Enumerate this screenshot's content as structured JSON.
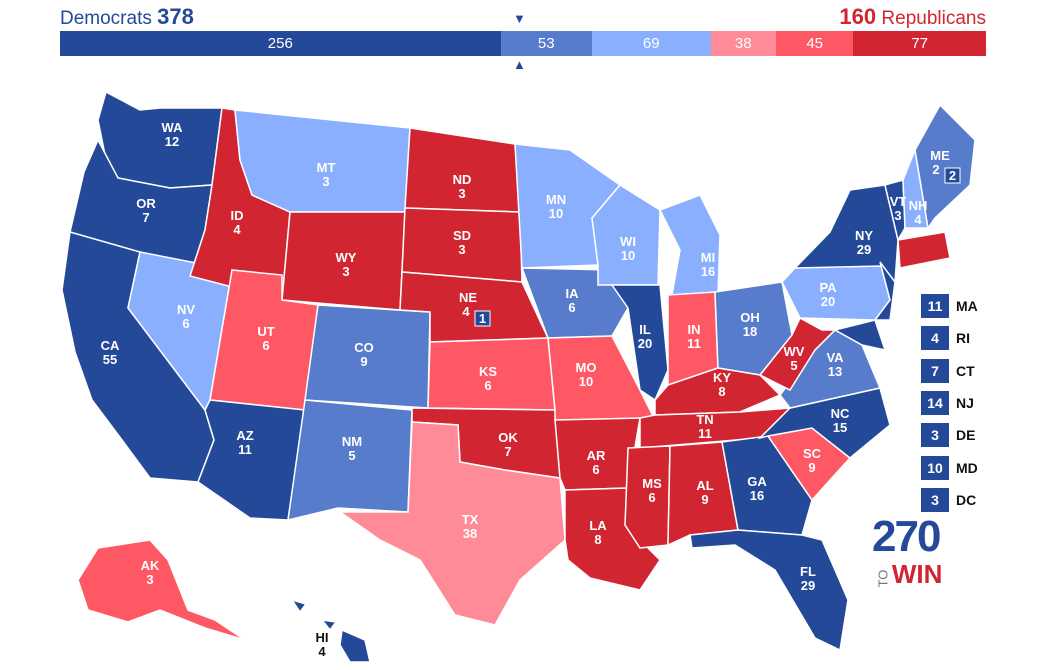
{
  "header": {
    "dem_label": "Democrats",
    "dem_total": "378",
    "rep_total": "160",
    "rep_label": "Republicans"
  },
  "colors": {
    "safe_d": "#244999",
    "likely_d": "#577ccc",
    "lean_d": "#8aafff",
    "lean_r": "#ff8b98",
    "likely_r": "#ff5865",
    "safe_r": "#d22532"
  },
  "bar": [
    {
      "value": 256,
      "label": "256",
      "color": "#244999"
    },
    {
      "value": 53,
      "label": "53",
      "color": "#577ccc"
    },
    {
      "value": 69,
      "label": "69",
      "color": "#8aafff"
    },
    {
      "value": 38,
      "label": "38",
      "color": "#ff8b98"
    },
    {
      "value": 45,
      "label": "45",
      "color": "#ff5865"
    },
    {
      "value": 77,
      "label": "77",
      "color": "#d22532"
    }
  ],
  "states": {
    "WA": {
      "label": "WA",
      "ev": "12",
      "rating": "safe_d"
    },
    "OR": {
      "label": "OR",
      "ev": "7",
      "rating": "safe_d"
    },
    "CA": {
      "label": "CA",
      "ev": "55",
      "rating": "safe_d"
    },
    "NV": {
      "label": "NV",
      "ev": "6",
      "rating": "lean_d"
    },
    "ID": {
      "label": "ID",
      "ev": "4",
      "rating": "safe_r"
    },
    "MT": {
      "label": "MT",
      "ev": "3",
      "rating": "lean_d"
    },
    "WY": {
      "label": "WY",
      "ev": "3",
      "rating": "safe_r"
    },
    "UT": {
      "label": "UT",
      "ev": "6",
      "rating": "likely_r"
    },
    "AZ": {
      "label": "AZ",
      "ev": "11",
      "rating": "safe_d"
    },
    "CO": {
      "label": "CO",
      "ev": "9",
      "rating": "likely_d"
    },
    "NM": {
      "label": "NM",
      "ev": "5",
      "rating": "likely_d"
    },
    "ND": {
      "label": "ND",
      "ev": "3",
      "rating": "safe_r"
    },
    "SD": {
      "label": "SD",
      "ev": "3",
      "rating": "safe_r"
    },
    "NE": {
      "label": "NE",
      "ev": "4",
      "rating": "safe_r"
    },
    "KS": {
      "label": "KS",
      "ev": "6",
      "rating": "likely_r"
    },
    "OK": {
      "label": "OK",
      "ev": "7",
      "rating": "safe_r"
    },
    "TX": {
      "label": "TX",
      "ev": "38",
      "rating": "lean_r"
    },
    "MN": {
      "label": "MN",
      "ev": "10",
      "rating": "lean_d"
    },
    "IA": {
      "label": "IA",
      "ev": "6",
      "rating": "likely_d"
    },
    "MO": {
      "label": "MO",
      "ev": "10",
      "rating": "likely_r"
    },
    "AR": {
      "label": "AR",
      "ev": "6",
      "rating": "safe_r"
    },
    "LA": {
      "label": "LA",
      "ev": "8",
      "rating": "safe_r"
    },
    "WI": {
      "label": "WI",
      "ev": "10",
      "rating": "lean_d"
    },
    "IL": {
      "label": "IL",
      "ev": "20",
      "rating": "safe_d"
    },
    "MI": {
      "label": "MI",
      "ev": "16",
      "rating": "lean_d"
    },
    "IN": {
      "label": "IN",
      "ev": "11",
      "rating": "likely_r"
    },
    "OH": {
      "label": "OH",
      "ev": "18",
      "rating": "likely_d"
    },
    "KY": {
      "label": "KY",
      "ev": "8",
      "rating": "safe_r"
    },
    "TN": {
      "label": "TN",
      "ev": "11",
      "rating": "safe_r"
    },
    "MS": {
      "label": "MS",
      "ev": "6",
      "rating": "safe_r"
    },
    "AL": {
      "label": "AL",
      "ev": "9",
      "rating": "safe_r"
    },
    "GA": {
      "label": "GA",
      "ev": "16",
      "rating": "safe_d"
    },
    "FL": {
      "label": "FL",
      "ev": "29",
      "rating": "safe_d"
    },
    "SC": {
      "label": "SC",
      "ev": "9",
      "rating": "likely_r"
    },
    "NC": {
      "label": "NC",
      "ev": "15",
      "rating": "safe_d"
    },
    "VA": {
      "label": "VA",
      "ev": "13",
      "rating": "likely_d"
    },
    "WV": {
      "label": "WV",
      "ev": "5",
      "rating": "safe_r"
    },
    "PA": {
      "label": "PA",
      "ev": "20",
      "rating": "lean_d"
    },
    "NY": {
      "label": "NY",
      "ev": "29",
      "rating": "safe_d"
    },
    "VT": {
      "label": "VT",
      "ev": "3",
      "rating": "safe_d"
    },
    "NH": {
      "label": "NH",
      "ev": "4",
      "rating": "lean_d"
    },
    "ME": {
      "label": "ME",
      "ev": "2",
      "district_ev": "2",
      "rating": "likely_d"
    },
    "NE_district": {
      "ev": "1",
      "rating": "safe_d"
    },
    "AK": {
      "label": "AK",
      "ev": "3",
      "rating": "likely_r"
    },
    "HI": {
      "label": "HI",
      "ev": "4",
      "rating": "safe_d"
    }
  },
  "small_states": [
    {
      "ev": "11",
      "abbr": "MA"
    },
    {
      "ev": "4",
      "abbr": "RI"
    },
    {
      "ev": "7",
      "abbr": "CT"
    },
    {
      "ev": "14",
      "abbr": "NJ"
    },
    {
      "ev": "3",
      "abbr": "DE"
    },
    {
      "ev": "10",
      "abbr": "MD"
    },
    {
      "ev": "3",
      "abbr": "DC"
    }
  ],
  "logo": {
    "number": "270",
    "to": "TO",
    "win": "WIN"
  }
}
